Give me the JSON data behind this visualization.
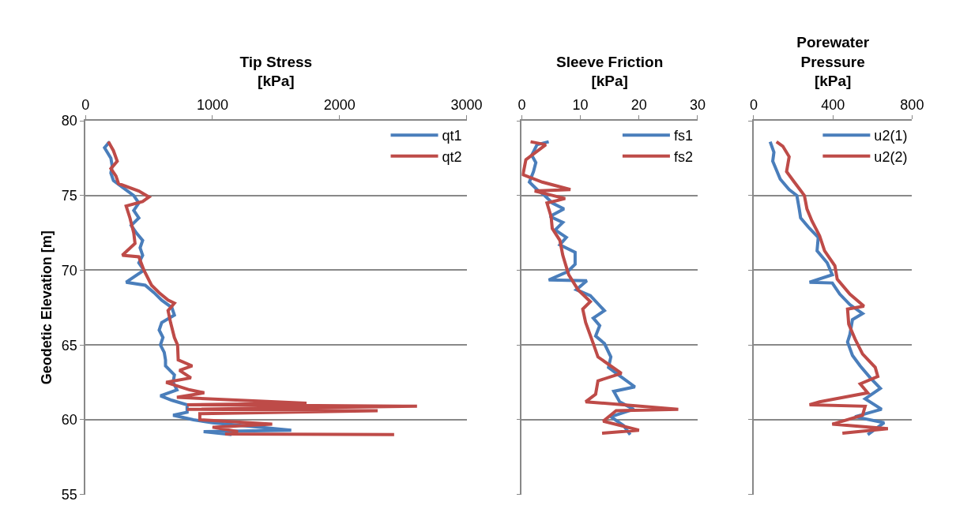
{
  "chart_data": [
    {
      "type": "line",
      "xlabel": "Tip Stress\n[kPa]",
      "ylabel": "Geodetic Elevation [m]",
      "xlim": [
        0,
        3000
      ],
      "xticks": [
        0,
        1000,
        2000,
        3000
      ],
      "ylim": [
        55,
        80
      ],
      "yticks": [
        55,
        60,
        65,
        70,
        75,
        80
      ],
      "grid": "y",
      "legend": "top right",
      "series": [
        {
          "name": "qt1",
          "color": "#4a7ebb",
          "x": [
            190,
            150,
            200,
            210,
            200,
            220,
            300,
            380,
            420,
            380,
            420,
            360,
            400,
            450,
            430,
            450,
            420,
            460,
            320,
            470,
            540,
            600,
            680,
            700,
            600,
            580,
            610,
            590,
            620,
            630,
            630,
            700,
            690,
            720,
            590,
            680,
            800,
            800,
            690,
            850,
            1000,
            1620,
            930,
            1150
          ],
          "values": [
            78.6,
            78.2,
            77.5,
            77.0,
            76.5,
            76.0,
            75.5,
            75.0,
            74.5,
            74.0,
            73.5,
            73.0,
            72.5,
            72.0,
            71.5,
            71.0,
            70.5,
            70.0,
            69.2,
            69.0,
            68.5,
            68.0,
            67.5,
            67.0,
            66.5,
            66.0,
            65.5,
            65.0,
            64.5,
            64.0,
            63.6,
            63.0,
            62.5,
            62.0,
            61.6,
            61.3,
            61.0,
            60.5,
            60.3,
            60.0,
            59.8,
            59.3,
            59.2,
            59.0
          ]
        },
        {
          "name": "qt2",
          "color": "#be4b48",
          "x": [
            180,
            220,
            250,
            200,
            240,
            260,
            420,
            500,
            450,
            320,
            350,
            380,
            390,
            290,
            420,
            460,
            520,
            580,
            650,
            700,
            650,
            670,
            700,
            725,
            730,
            840,
            740,
            830,
            635,
            820,
            935,
            720,
            1740,
            800,
            2610,
            800,
            2300,
            900,
            900,
            1470,
            1000,
            1200,
            1100,
            2430
          ],
          "values": [
            78.6,
            78.0,
            77.3,
            76.8,
            76.3,
            75.8,
            75.3,
            74.9,
            74.6,
            74.3,
            73.5,
            72.5,
            71.8,
            71.0,
            70.9,
            70.0,
            69.0,
            68.5,
            68.0,
            67.8,
            67.3,
            66.5,
            65.5,
            65.0,
            64.0,
            63.6,
            63.3,
            62.8,
            62.5,
            62.0,
            61.8,
            61.5,
            61.1,
            61.0,
            60.9,
            60.7,
            60.6,
            60.4,
            60.0,
            59.7,
            59.5,
            59.2,
            59.05,
            59.0
          ]
        }
      ]
    },
    {
      "type": "line",
      "xlabel": "Sleeve Friction\n[kPa]",
      "xlim": [
        0,
        30
      ],
      "xticks": [
        0,
        10,
        20,
        30
      ],
      "ylim": [
        55,
        80
      ],
      "yticks": [
        55,
        60,
        65,
        70,
        75,
        80
      ],
      "grid": "y",
      "legend": "top right",
      "tick_labels": "x",
      "series": [
        {
          "name": "fs1",
          "color": "#4a7ebb",
          "x": [
            4.6,
            2.6,
            1.7,
            2.4,
            2.0,
            1.3,
            2.6,
            3.9,
            5.2,
            7.2,
            4.8,
            7.0,
            5.7,
            7.6,
            6.5,
            9.1,
            9.1,
            7.8,
            4.6,
            11.1,
            9.3,
            11.7,
            14.1,
            12.2,
            13.3,
            12.6,
            14.1,
            15.2,
            14.8,
            16.5,
            19.3,
            15.7,
            16.7,
            19.1,
            15.2,
            17.4,
            18.5
          ],
          "values": [
            78.6,
            78.4,
            77.7,
            77.2,
            76.6,
            75.9,
            75.4,
            75.0,
            74.5,
            74.1,
            73.6,
            73.2,
            72.7,
            72.2,
            71.7,
            71.2,
            70.4,
            69.9,
            69.35,
            69.3,
            68.7,
            68.3,
            67.3,
            66.8,
            66.3,
            65.6,
            65.1,
            64.2,
            63.5,
            63.0,
            62.2,
            61.9,
            61.2,
            60.7,
            60.2,
            59.6,
            59.0
          ]
        },
        {
          "name": "fs2",
          "color": "#be4b48",
          "x": [
            1.5,
            4.1,
            0.7,
            0.2,
            3.5,
            8.3,
            2.2,
            7.4,
            4.3,
            5.0,
            5.2,
            6.5,
            7.0,
            8.0,
            9.6,
            11.7,
            10.4,
            10.9,
            12.2,
            13.0,
            17.0,
            13.0,
            12.6,
            10.9,
            26.7,
            16.1,
            13.9,
            20.0,
            13.7
          ],
          "values": [
            78.6,
            78.4,
            77.4,
            76.4,
            75.9,
            75.4,
            75.3,
            74.8,
            74.5,
            73.6,
            72.8,
            72.0,
            71.0,
            69.7,
            68.7,
            67.9,
            67.4,
            66.5,
            65.1,
            64.2,
            63.1,
            62.6,
            61.7,
            61.2,
            60.7,
            60.6,
            59.9,
            59.3,
            59.1
          ]
        }
      ]
    },
    {
      "type": "line",
      "xlabel": "Porewater\nPressure\n[kPa]",
      "xlim": [
        0,
        800
      ],
      "xticks": [
        0,
        400,
        800
      ],
      "ylim": [
        55,
        80
      ],
      "yticks": [
        55,
        60,
        65,
        70,
        75,
        80
      ],
      "grid": "y",
      "legend": "top right",
      "tick_labels": "x",
      "series": [
        {
          "name": "u2(1)",
          "color": "#4a7ebb",
          "x": [
            83,
            102,
            96,
            134,
            179,
            218,
            230,
            237,
            282,
            326,
            320,
            371,
            397,
            282,
            397,
            435,
            486,
            550,
            499,
            486,
            474,
            499,
            538,
            589,
            640,
            563,
            646,
            512,
            659,
            576
          ],
          "values": [
            78.6,
            77.9,
            77.3,
            76.1,
            75.4,
            75.0,
            74.1,
            73.5,
            72.8,
            72.2,
            71.3,
            70.5,
            69.7,
            69.2,
            69.15,
            68.4,
            67.7,
            67.1,
            66.7,
            65.7,
            65.2,
            64.3,
            63.6,
            62.8,
            62.1,
            61.4,
            60.7,
            60.2,
            59.8,
            59.0
          ]
        },
        {
          "name": "u2(2)",
          "color": "#be4b48",
          "x": [
            115,
            147,
            179,
            166,
            205,
            256,
            269,
            294,
            333,
            358,
            410,
            422,
            486,
            557,
            474,
            480,
            512,
            550,
            614,
            627,
            538,
            576,
            333,
            282,
            563,
            550,
            397,
            678,
            448
          ],
          "values": [
            78.6,
            78.3,
            77.6,
            76.6,
            75.9,
            75.0,
            74.1,
            73.3,
            72.3,
            71.3,
            70.3,
            69.4,
            68.4,
            67.6,
            67.4,
            66.4,
            65.4,
            64.4,
            63.5,
            62.9,
            62.4,
            61.8,
            61.2,
            61.0,
            60.9,
            60.3,
            59.7,
            59.4,
            59.1
          ]
        }
      ]
    }
  ]
}
